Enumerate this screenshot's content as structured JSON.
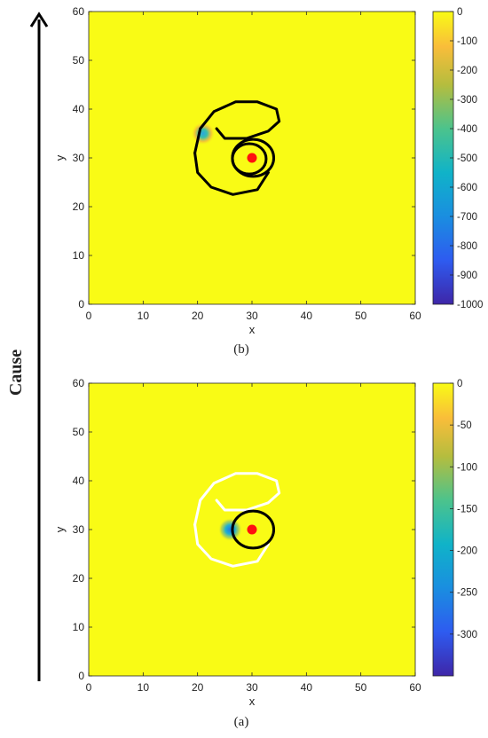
{
  "side_label": "Cause",
  "chart_data": [
    {
      "type": "heatmap",
      "panel_label": "(b)",
      "xlabel": "x",
      "ylabel": "y",
      "xlim": [
        0,
        60
      ],
      "ylim": [
        0,
        60
      ],
      "xticks": [
        0,
        10,
        20,
        30,
        40,
        50,
        60
      ],
      "yticks": [
        0,
        10,
        20,
        30,
        40,
        50,
        60
      ],
      "colorbar": {
        "range": [
          -1000,
          0
        ],
        "ticks": [
          0,
          -100,
          -200,
          -300,
          -400,
          -500,
          -600,
          -700,
          -800,
          -900,
          -1000
        ]
      },
      "background_value": 0,
      "hotspot": {
        "x": 21,
        "y": 35,
        "min_value": -620
      },
      "point": {
        "x": 30,
        "y": 30,
        "color": "#ff1010"
      },
      "contour_color": "#000000"
    },
    {
      "type": "heatmap",
      "panel_label": "(a)",
      "xlabel": "x",
      "ylabel": "y",
      "xlim": [
        0,
        60
      ],
      "ylim": [
        0,
        60
      ],
      "xticks": [
        0,
        10,
        20,
        30,
        40,
        50,
        60
      ],
      "yticks": [
        0,
        10,
        20,
        30,
        40,
        50,
        60
      ],
      "colorbar": {
        "range": [
          -350,
          0
        ],
        "ticks": [
          0,
          -50,
          -100,
          -150,
          -200,
          -250,
          -300
        ]
      },
      "background_value": 0,
      "hotspot": {
        "x": 26,
        "y": 30,
        "min_value": -230
      },
      "point": {
        "x": 30,
        "y": 30,
        "color": "#ff1010"
      },
      "contour_color": "#ffffff",
      "circle_color": "#000000"
    }
  ]
}
